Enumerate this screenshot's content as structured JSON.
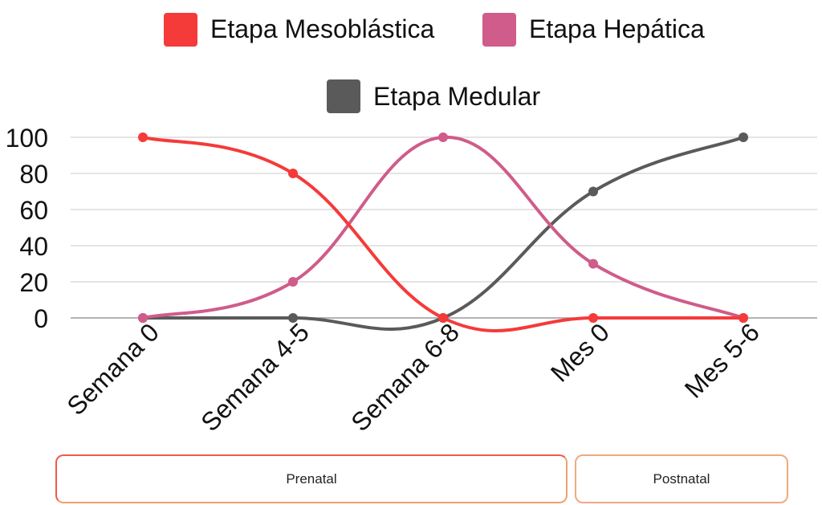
{
  "chart_data": {
    "type": "line",
    "categories": [
      "Semana 0",
      "Semana 4-5",
      "Semana 6-8",
      "Mes 0",
      "Mes 5-6"
    ],
    "series": [
      {
        "name": "Etapa Mesoblástica",
        "color": "#f53a3a",
        "values": [
          100,
          80,
          0,
          0,
          0
        ]
      },
      {
        "name": "Etapa Hepática",
        "color": "#cf5c8a",
        "values": [
          0,
          20,
          100,
          30,
          0
        ]
      },
      {
        "name": "Etapa Medular",
        "color": "#5a5a5a",
        "values": [
          0,
          0,
          0,
          70,
          100
        ]
      }
    ],
    "ylim": [
      0,
      100
    ],
    "yticks": [
      0,
      20,
      40,
      60,
      80,
      100
    ],
    "grid": true,
    "legend_position": "top",
    "smooth": true
  },
  "periods": [
    {
      "label": "Prenatal"
    },
    {
      "label": "Postnatal"
    }
  ]
}
